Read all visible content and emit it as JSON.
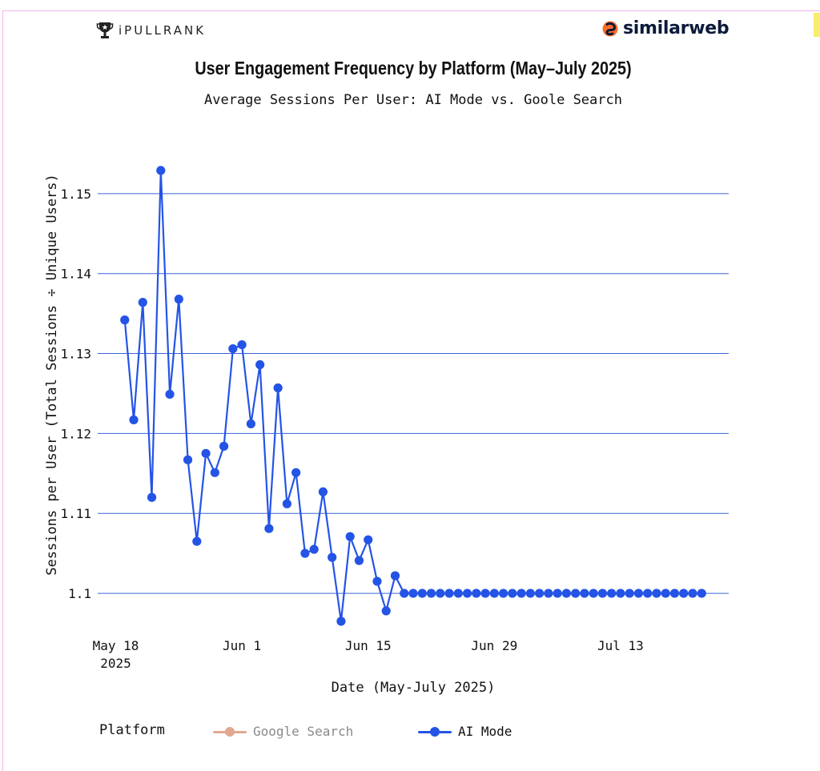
{
  "brands": {
    "left_logo_text": "iPULLRANK",
    "right_logo_text": "similarweb"
  },
  "colors": {
    "ai_mode": "#2454e6",
    "google_search": "#e0a890",
    "grid": "#3a63d6",
    "frame": "#f0b6e8"
  },
  "chart_data": {
    "type": "line",
    "title": "User Engagement Frequency by Platform (May–July 2025)",
    "subtitle": "Average Sessions Per User: AI Mode vs. Goole Search",
    "xlabel": "Date (May-July 2025)",
    "ylabel": "Sessions per User (Total Sessions ÷ Unique Users)",
    "x_range": [
      "2025-05-16",
      "2025-07-25"
    ],
    "ylim": [
      1.0955,
      1.1585
    ],
    "y_ticks": [
      1.1,
      1.11,
      1.12,
      1.13,
      1.14,
      1.15
    ],
    "y_tick_labels": [
      "1.1",
      "1.11",
      "1.12",
      "1.13",
      "1.14",
      "1.15"
    ],
    "x_ticks": [
      {
        "date": "2025-05-18",
        "label": "May 18",
        "sublabel": "2025"
      },
      {
        "date": "2025-06-01",
        "label": "Jun 1",
        "sublabel": ""
      },
      {
        "date": "2025-06-15",
        "label": "Jun 15",
        "sublabel": ""
      },
      {
        "date": "2025-06-29",
        "label": "Jun 29",
        "sublabel": ""
      },
      {
        "date": "2025-07-13",
        "label": "Jul 13",
        "sublabel": ""
      }
    ],
    "grid": "horizontal",
    "legend": {
      "title": "Platform",
      "position": "bottom"
    },
    "series": [
      {
        "name": "Google Search",
        "visible": false,
        "x": [],
        "y": []
      },
      {
        "name": "AI Mode",
        "visible": true,
        "x": [
          "2025-05-19",
          "2025-05-20",
          "2025-05-21",
          "2025-05-22",
          "2025-05-23",
          "2025-05-24",
          "2025-05-25",
          "2025-05-26",
          "2025-05-27",
          "2025-05-28",
          "2025-05-29",
          "2025-05-30",
          "2025-05-31",
          "2025-06-01",
          "2025-06-02",
          "2025-06-03",
          "2025-06-04",
          "2025-06-05",
          "2025-06-06",
          "2025-06-07",
          "2025-06-08",
          "2025-06-09",
          "2025-06-10",
          "2025-06-11",
          "2025-06-12",
          "2025-06-13",
          "2025-06-14",
          "2025-06-15",
          "2025-06-16",
          "2025-06-17",
          "2025-06-18",
          "2025-06-19",
          "2025-06-20",
          "2025-06-21",
          "2025-06-22",
          "2025-06-23",
          "2025-06-24",
          "2025-06-25",
          "2025-06-26",
          "2025-06-27",
          "2025-06-28",
          "2025-06-29",
          "2025-06-30",
          "2025-07-01",
          "2025-07-02",
          "2025-07-03",
          "2025-07-04",
          "2025-07-05",
          "2025-07-06",
          "2025-07-07",
          "2025-07-08",
          "2025-07-09",
          "2025-07-10",
          "2025-07-11",
          "2025-07-12",
          "2025-07-13",
          "2025-07-14",
          "2025-07-15",
          "2025-07-16",
          "2025-07-17",
          "2025-07-18",
          "2025-07-19",
          "2025-07-20",
          "2025-07-21",
          "2025-07-22"
        ],
        "y": [
          1.1342,
          1.1217,
          1.1364,
          1.112,
          1.1529,
          1.1249,
          1.1368,
          1.1167,
          1.1065,
          1.1175,
          1.1151,
          1.1184,
          1.1306,
          1.1311,
          1.1212,
          1.1286,
          1.1081,
          1.1257,
          1.1112,
          1.1151,
          1.105,
          1.1055,
          1.1127,
          1.1045,
          1.0965,
          1.1071,
          1.1041,
          1.1067,
          1.1015,
          1.0978,
          1.1022,
          1.1,
          1.1,
          1.1,
          1.1,
          1.1,
          1.1,
          1.1,
          1.1,
          1.1,
          1.1,
          1.1,
          1.1,
          1.1,
          1.1,
          1.1,
          1.1,
          1.1,
          1.1,
          1.1,
          1.1,
          1.1,
          1.1,
          1.1,
          1.1,
          1.1,
          1.1,
          1.1,
          1.1,
          1.1,
          1.1,
          1.1,
          1.1,
          1.1,
          1.1
        ]
      }
    ]
  }
}
